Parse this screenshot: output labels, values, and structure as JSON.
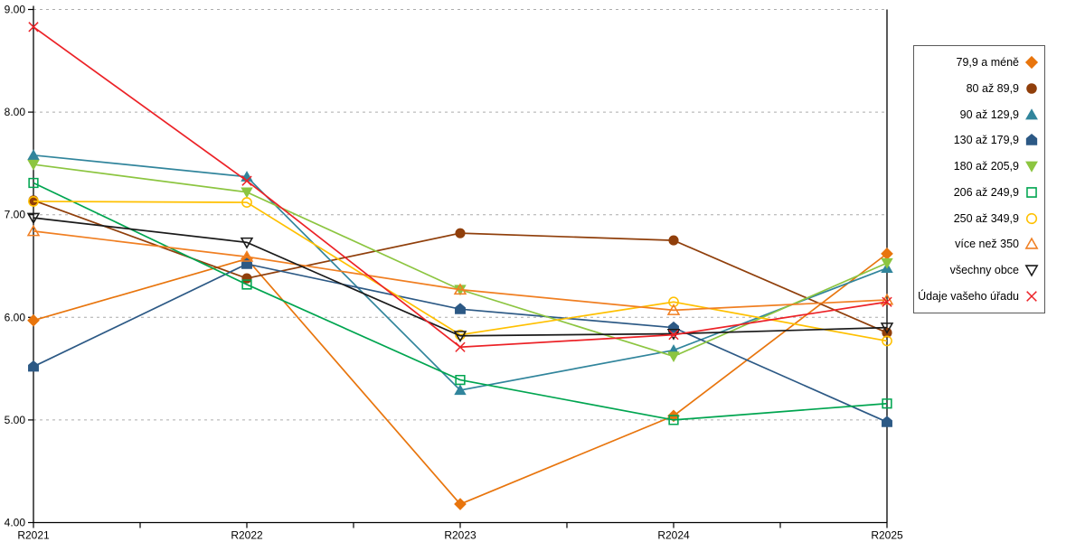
{
  "chart_data": {
    "type": "line",
    "title": "",
    "xlabel": "",
    "ylabel": "",
    "categories": [
      "R2021",
      "R2022",
      "R2023",
      "R2024",
      "R2025"
    ],
    "ylim": [
      4,
      9
    ],
    "y_tick_step": 1,
    "y_tick_labels": [
      "9.00",
      "8.00",
      "7.00",
      "6.00",
      "5.00",
      "4.00"
    ],
    "grid": "horizontal-dashed",
    "legend_position": "right",
    "axis_color": "#000000",
    "gridline_color": "#ACACAC",
    "series": [
      {
        "name": "79,9 a méně",
        "marker": "diamond",
        "fill": "solid",
        "color": "#E8750D",
        "values": [
          5.97,
          6.57,
          4.18,
          5.04,
          6.62
        ]
      },
      {
        "name": "80 až 89,9",
        "marker": "circle",
        "fill": "solid",
        "color": "#903F0B",
        "values": [
          7.14,
          6.38,
          6.82,
          6.75,
          5.85
        ]
      },
      {
        "name": "90 až 129,9",
        "marker": "triangle-up",
        "fill": "solid",
        "color": "#31859C",
        "values": [
          7.58,
          7.37,
          5.29,
          5.68,
          6.48
        ]
      },
      {
        "name": "130 až 179,9",
        "marker": "pentagon",
        "fill": "solid",
        "color": "#2C5985",
        "values": [
          5.52,
          6.52,
          6.08,
          5.9,
          4.98
        ]
      },
      {
        "name": "180 až 205,9",
        "marker": "triangle-down",
        "fill": "solid",
        "color": "#8CC540",
        "values": [
          7.49,
          7.22,
          6.27,
          5.62,
          6.53
        ]
      },
      {
        "name": "206 až 249,9",
        "marker": "square",
        "fill": "open",
        "color": "#00A550",
        "values": [
          7.31,
          6.32,
          5.39,
          5.0,
          5.16
        ]
      },
      {
        "name": "250 až 349,9",
        "marker": "circle",
        "fill": "open",
        "color": "#FFC000",
        "values": [
          7.13,
          7.12,
          5.83,
          6.15,
          5.77
        ]
      },
      {
        "name": "více než 350",
        "marker": "triangle-up",
        "fill": "open",
        "color": "#F07F22",
        "values": [
          6.84,
          6.59,
          6.27,
          6.07,
          6.17
        ]
      },
      {
        "name": "všechny obce",
        "marker": "triangle-down",
        "fill": "open",
        "color": "#1A1A1A",
        "values": [
          6.97,
          6.73,
          5.82,
          5.84,
          5.9
        ]
      },
      {
        "name": "Údaje vašeho úřadu",
        "marker": "x",
        "fill": "open",
        "color": "#EC2227",
        "values": [
          8.83,
          7.33,
          5.71,
          5.83,
          6.15
        ]
      }
    ]
  }
}
